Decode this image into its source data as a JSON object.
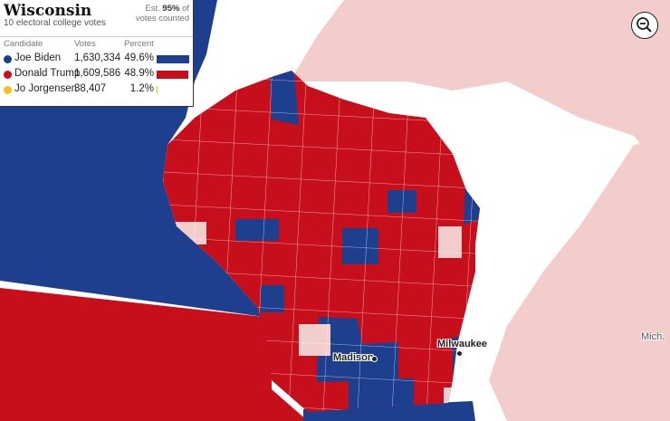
{
  "state": {
    "name": "Wisconsin",
    "electoral_votes": "10 electoral college votes",
    "est_prefix": "Est. ",
    "est_pct": "95%",
    "est_suffix": " of votes counted"
  },
  "table": {
    "headers": [
      "Candidate",
      "Votes",
      "Percent"
    ],
    "rows": [
      {
        "name": "Joe Biden",
        "votes": "1,630,334",
        "pct": "49.6%",
        "share": 49.6,
        "color": "#1d3f8e"
      },
      {
        "name": "Donald Trump",
        "votes": "1,609,586",
        "pct": "48.9%",
        "share": 48.9,
        "color": "#c70e1b"
      },
      {
        "name": "Jo Jorgensen",
        "votes": "38,407",
        "pct": "1.2%",
        "share": 1.2,
        "color": "#f4c01e"
      }
    ]
  },
  "map": {
    "cities": [
      {
        "name": "Madison"
      },
      {
        "name": "Milwaukee"
      }
    ],
    "neighbor_label": "Mich.",
    "colors": {
      "dem": "#1d3f8e",
      "rep": "#c70e1b",
      "other_state": "#f3cccc",
      "water": "#ffffff"
    }
  },
  "controls": {
    "zoom_icon": "zoom-out-icon"
  }
}
